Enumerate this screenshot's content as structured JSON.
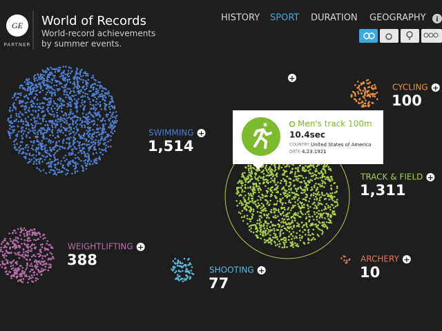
{
  "header": {
    "logo": "GE",
    "partner": "PARTNER",
    "title": "World of Records",
    "subtitle": [
      "World-record achievements",
      "by summer events."
    ]
  },
  "nav": {
    "items": [
      "HISTORY",
      "SPORT",
      "DURATION",
      "GEOGRAPHY"
    ],
    "active": 1
  },
  "sports": [
    {
      "name": "SWIMMING",
      "count": 1514,
      "count_label": "1,514",
      "color": "#4f7fd3"
    },
    {
      "name": "CYCLING",
      "count": 100,
      "count_label": "100",
      "color": "#e8933c"
    },
    {
      "name": "TRACK & FIELD",
      "count": 1311,
      "count_label": "1,311",
      "color": "#a9d04a"
    },
    {
      "name": "WEIGHTLIFTING",
      "count": 388,
      "count_label": "388",
      "color": "#b66ca9"
    },
    {
      "name": "SHOOTING",
      "count": 77,
      "count_label": "77",
      "color": "#5bbbdc"
    },
    {
      "name": "ARCHERY",
      "count": 10,
      "count_label": "10",
      "color": "#ea745c"
    }
  ],
  "tooltip": {
    "event": "Men's track 100m",
    "result": "10.4sec",
    "country_label": "COUNTRY",
    "country": "United States of America",
    "date_label": "DATE",
    "date": "4.23.1921"
  }
}
